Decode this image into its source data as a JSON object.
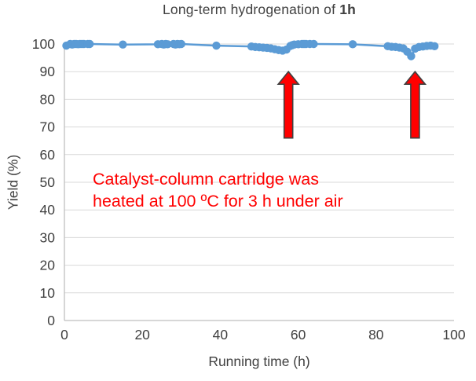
{
  "chart_data": {
    "type": "scatter-line",
    "title": "Long-term hydrogenation of 1h",
    "title_prefix": "Long-term hydrogenation of ",
    "title_bold": "1h",
    "xlabel": "Running time (h)",
    "ylabel": "Yield (%)",
    "xlim": [
      0,
      100
    ],
    "ylim": [
      0,
      100
    ],
    "x_ticks": [
      0,
      20,
      40,
      60,
      80,
      100
    ],
    "y_ticks": [
      0,
      10,
      20,
      30,
      40,
      50,
      60,
      70,
      80,
      90,
      100
    ],
    "grid": "horizontal",
    "legend": "none",
    "colors": {
      "series": "#5B9BD5",
      "annotation": "#FF0000",
      "arrow_fill": "#FF0000",
      "arrow_outline": "#404040",
      "axis_text": "#404040",
      "gridline": "#D9D9D9",
      "axis_line": "#BFBFBF"
    },
    "series": [
      {
        "color": "#5B9BD5",
        "marker": "circle",
        "points": [
          [
            0.5,
            99.4
          ],
          [
            1.5,
            100
          ],
          [
            2,
            99.8
          ],
          [
            2.5,
            100
          ],
          [
            3,
            100
          ],
          [
            3.5,
            99.9
          ],
          [
            4,
            100
          ],
          [
            4.5,
            100
          ],
          [
            5,
            100
          ],
          [
            6,
            100
          ],
          [
            6.5,
            100
          ],
          [
            15,
            99.8
          ],
          [
            24,
            99.9
          ],
          [
            25,
            100
          ],
          [
            25.5,
            99.8
          ],
          [
            26,
            100
          ],
          [
            26.5,
            99.9
          ],
          [
            28,
            100
          ],
          [
            28.5,
            99.8
          ],
          [
            29,
            100
          ],
          [
            29.5,
            99.9
          ],
          [
            30,
            100
          ],
          [
            39,
            99.4
          ],
          [
            48,
            99.1
          ],
          [
            49,
            98.9
          ],
          [
            50,
            98.8
          ],
          [
            51,
            98.7
          ],
          [
            52,
            98.6
          ],
          [
            53,
            98.4
          ],
          [
            54,
            98.1
          ],
          [
            55,
            97.8
          ],
          [
            56,
            97.6
          ],
          [
            57,
            98.0
          ],
          [
            58,
            99.3
          ],
          [
            58.5,
            99.6
          ],
          [
            59,
            99.8
          ],
          [
            60,
            99.9
          ],
          [
            61,
            100
          ],
          [
            61.5,
            100
          ],
          [
            62,
            100
          ],
          [
            63,
            100
          ],
          [
            64,
            100
          ],
          [
            74,
            99.9
          ],
          [
            83,
            99.2
          ],
          [
            84,
            99.0
          ],
          [
            85,
            98.9
          ],
          [
            86,
            98.7
          ],
          [
            87,
            98.4
          ],
          [
            88,
            97.2
          ],
          [
            89,
            95.6
          ],
          [
            90,
            98.3
          ],
          [
            91,
            98.9
          ],
          [
            92,
            99.1
          ],
          [
            93,
            99.3
          ],
          [
            94,
            99.4
          ],
          [
            95,
            99.2
          ]
        ]
      }
    ],
    "annotations": {
      "text": {
        "line1": "Catalyst-column cartridge was",
        "line2": "heated at 100 ºC for 3 h under air",
        "color": "#FF0000"
      },
      "arrows": [
        {
          "x": 57.5,
          "y_from": 66,
          "y_to": 90
        },
        {
          "x": 90,
          "y_from": 66,
          "y_to": 90
        }
      ],
      "arrow_fill": "#FF0000",
      "arrow_outline": "#404040"
    }
  }
}
